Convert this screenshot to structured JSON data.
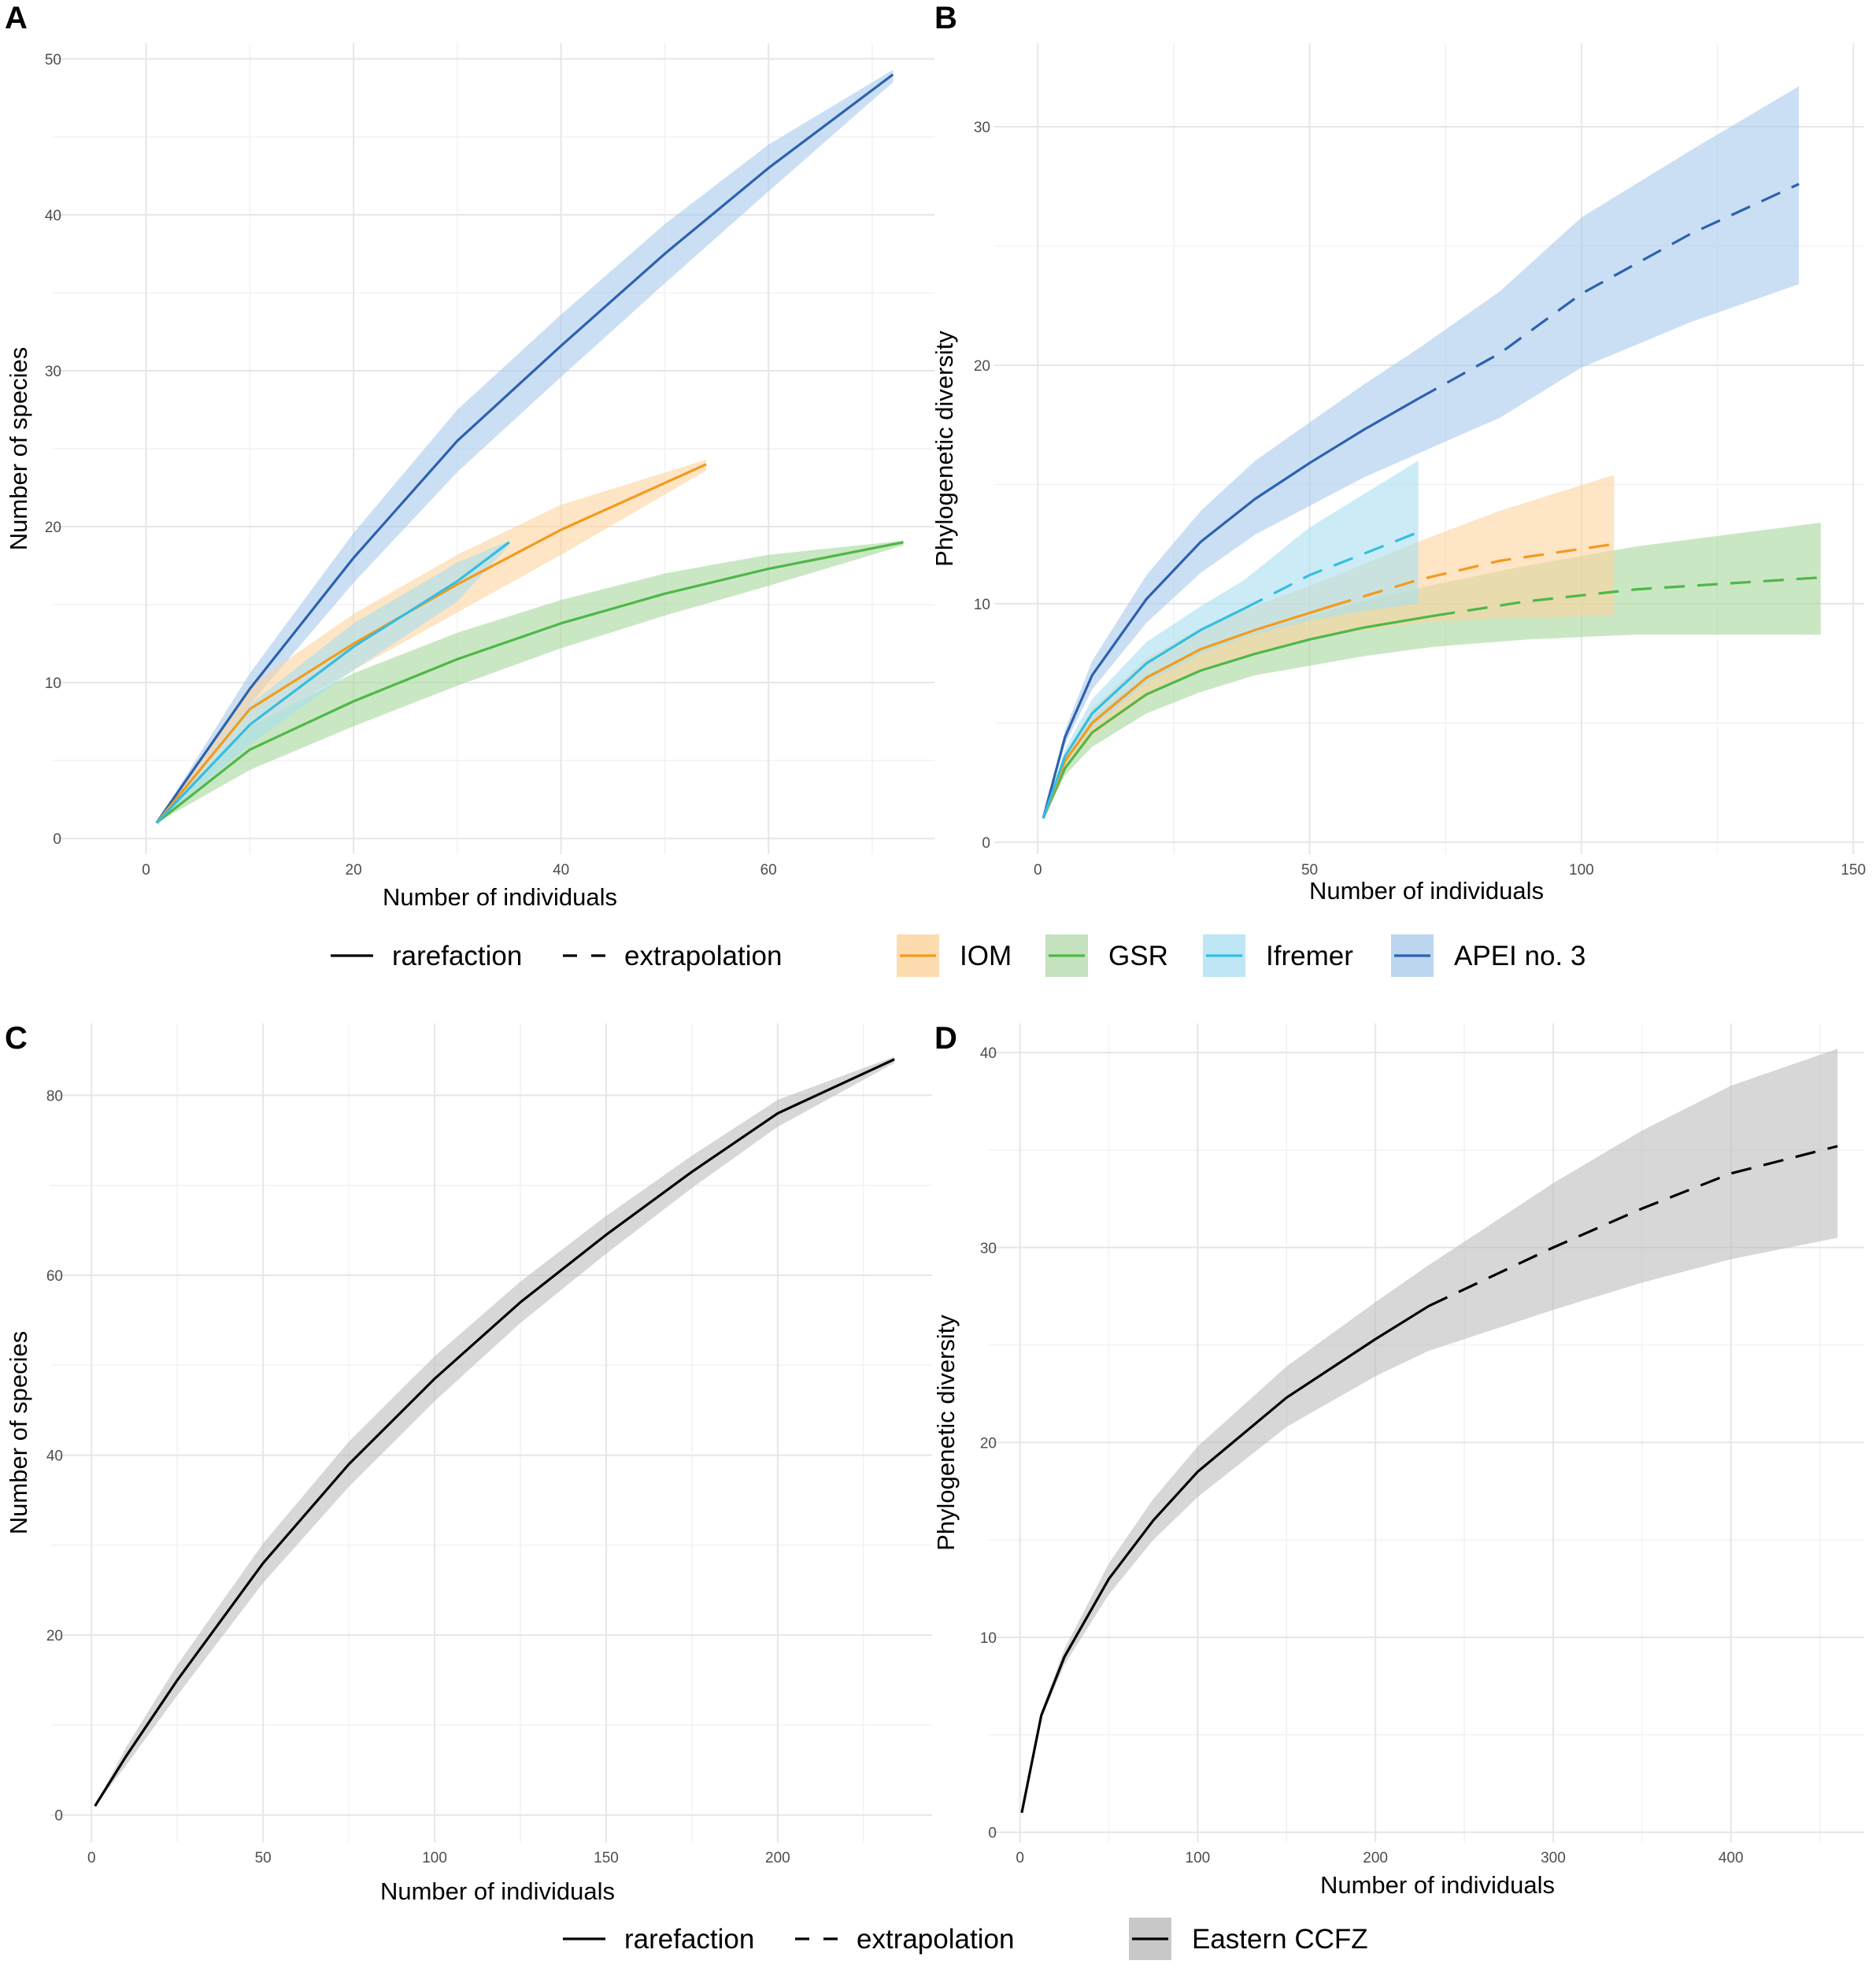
{
  "legend_top": {
    "linetype": [
      {
        "label": "rarefaction",
        "dash": false
      },
      {
        "label": "extrapolation",
        "dash": true
      }
    ],
    "groups": [
      {
        "label": "IOM",
        "color": "#f39a1e",
        "fill": "#fddcb0"
      },
      {
        "label": "GSR",
        "color": "#4db848",
        "fill": "#c4e2bd"
      },
      {
        "label": "Ifremer",
        "color": "#35bde0",
        "fill": "#bfe6f4"
      },
      {
        "label": "APEI no. 3",
        "color": "#2b62ad",
        "fill": "#bcd6f0"
      }
    ]
  },
  "legend_bottom": {
    "linetype": [
      {
        "label": "rarefaction",
        "dash": false
      },
      {
        "label": "extrapolation",
        "dash": true
      }
    ],
    "groups": [
      {
        "label": "Eastern CCFZ",
        "color": "#000000",
        "fill": "#c8c8c8"
      }
    ]
  },
  "chart_data": [
    {
      "panel": "A",
      "type": "line",
      "xlabel": "Number of individuals",
      "ylabel": "Number of species",
      "xlim": [
        -9,
        76
      ],
      "ylim": [
        -1,
        51
      ],
      "xticks": [
        0,
        20,
        40,
        60
      ],
      "xminor": [
        10,
        30,
        50,
        70
      ],
      "yticks": [
        0,
        10,
        20,
        30,
        40,
        50
      ],
      "yminor": [
        5,
        15,
        25,
        35,
        45
      ],
      "series": [
        {
          "name": "APEI no. 3",
          "color": "#2b62ad",
          "fill": "#a9c9ec",
          "rare_end": 72,
          "points": [
            [
              1,
              1,
              1,
              1
            ],
            [
              10,
              9.6,
              8.6,
              10.6
            ],
            [
              20,
              18,
              16.4,
              19.6
            ],
            [
              30,
              25.5,
              23.5,
              27.5
            ],
            [
              40,
              31.6,
              29.6,
              33.6
            ],
            [
              50,
              37.5,
              35.6,
              39.4
            ],
            [
              60,
              43,
              41.5,
              44.5
            ],
            [
              72,
              49,
              48.5,
              49.3
            ]
          ]
        },
        {
          "name": "GSR",
          "color": "#4db848",
          "fill": "#a7d79b",
          "rare_end": 73,
          "points": [
            [
              1,
              1,
              1,
              1
            ],
            [
              10,
              5.7,
              4.4,
              7.2
            ],
            [
              20,
              8.8,
              7.2,
              10.6
            ],
            [
              30,
              11.5,
              9.8,
              13.2
            ],
            [
              40,
              13.8,
              12.2,
              15.3
            ],
            [
              50,
              15.7,
              14.3,
              17
            ],
            [
              60,
              17.3,
              16.2,
              18.2
            ],
            [
              73,
              19,
              18.8,
              19.1
            ]
          ]
        },
        {
          "name": "IOM",
          "color": "#f39a1e",
          "fill": "#fcd39e",
          "rare_end": 54,
          "points": [
            [
              1,
              1,
              1,
              1
            ],
            [
              10,
              8.3,
              7,
              9.8
            ],
            [
              20,
              12.5,
              10.8,
              14.4
            ],
            [
              30,
              16.3,
              14.5,
              18.2
            ],
            [
              40,
              19.8,
              18.2,
              21.4
            ],
            [
              54,
              24,
              23.6,
              24.3
            ]
          ]
        },
        {
          "name": "Ifremer",
          "color": "#35bde0",
          "fill": "#a9dff0",
          "rare_end": 35,
          "points": [
            [
              1,
              1,
              1,
              1
            ],
            [
              10,
              7.3,
              6,
              8.6
            ],
            [
              20,
              12.3,
              10.8,
              13.8
            ],
            [
              30,
              16.5,
              15.2,
              17.7
            ],
            [
              35,
              19,
              18.8,
              19.1
            ]
          ]
        }
      ]
    },
    {
      "panel": "B",
      "type": "line",
      "xlabel": "Number of individuals",
      "ylabel": "Phylogenetic diversity",
      "xlim": [
        -8,
        152
      ],
      "ylim": [
        -0.5,
        33.5
      ],
      "xticks": [
        0,
        50,
        100,
        150
      ],
      "xminor": [
        25,
        75,
        125
      ],
      "yticks": [
        0,
        10,
        20,
        30
      ],
      "yminor": [
        5,
        15,
        25
      ],
      "series": [
        {
          "name": "APEI no. 3",
          "color": "#2b62ad",
          "fill": "#a9c9ec",
          "rare_end": 70,
          "points": [
            [
              1,
              1,
              1,
              1
            ],
            [
              5,
              4.4,
              4.1,
              4.7
            ],
            [
              10,
              7,
              6.4,
              7.6
            ],
            [
              20,
              10.2,
              9.2,
              11.2
            ],
            [
              30,
              12.6,
              11.3,
              13.9
            ],
            [
              40,
              14.4,
              12.9,
              16
            ],
            [
              50,
              15.9,
              14.1,
              17.6
            ],
            [
              60,
              17.3,
              15.3,
              19.2
            ],
            [
              70,
              18.6,
              16.3,
              20.7
            ],
            [
              85,
              20.5,
              17.8,
              23.1
            ],
            [
              100,
              23,
              19.9,
              26.2
            ],
            [
              120,
              25.5,
              21.8,
              29
            ],
            [
              140,
              27.6,
              23.4,
              31.7
            ]
          ]
        },
        {
          "name": "GSR",
          "color": "#4db848",
          "fill": "#a7d79b",
          "rare_end": 73,
          "points": [
            [
              1,
              1,
              1,
              1
            ],
            [
              5,
              3.1,
              2.8,
              3.4
            ],
            [
              10,
              4.6,
              4,
              5.2
            ],
            [
              20,
              6.2,
              5.4,
              7
            ],
            [
              30,
              7.2,
              6.3,
              8.1
            ],
            [
              40,
              7.9,
              7,
              8.8
            ],
            [
              50,
              8.5,
              7.4,
              9.5
            ],
            [
              60,
              9,
              7.8,
              10.1
            ],
            [
              73,
              9.5,
              8.2,
              10.8
            ],
            [
              90,
              10.1,
              8.5,
              11.6
            ],
            [
              110,
              10.6,
              8.7,
              12.4
            ],
            [
              144,
              11.1,
              8.7,
              13.4
            ]
          ]
        },
        {
          "name": "IOM",
          "color": "#f39a1e",
          "fill": "#fcd39e",
          "rare_end": 54,
          "points": [
            [
              1,
              1,
              1,
              1
            ],
            [
              5,
              3.4,
              3.1,
              3.7
            ],
            [
              10,
              5,
              4.4,
              5.6
            ],
            [
              20,
              6.9,
              6.1,
              7.7
            ],
            [
              30,
              8.1,
              7.2,
              9
            ],
            [
              40,
              8.9,
              7.9,
              9.9
            ],
            [
              54,
              9.9,
              8.7,
              11.1
            ],
            [
              70,
              11,
              9.2,
              12.6
            ],
            [
              85,
              11.8,
              9.4,
              13.9
            ],
            [
              106,
              12.5,
              9.5,
              15.4
            ]
          ]
        },
        {
          "name": "Ifremer",
          "color": "#35bde0",
          "fill": "#a9dff0",
          "rare_end": 38,
          "points": [
            [
              1,
              1,
              1,
              1
            ],
            [
              5,
              3.6,
              3.3,
              3.9
            ],
            [
              10,
              5.4,
              4.8,
              6
            ],
            [
              20,
              7.5,
              6.7,
              8.4
            ],
            [
              30,
              8.9,
              7.9,
              9.9
            ],
            [
              38,
              9.8,
              8.6,
              11
            ],
            [
              50,
              11.2,
              9.3,
              13.2
            ],
            [
              60,
              12.1,
              9.7,
              14.6
            ],
            [
              70,
              13,
              10,
              16
            ]
          ]
        }
      ]
    },
    {
      "panel": "C",
      "type": "line",
      "xlabel": "Number of individuals",
      "ylabel": "Number of species",
      "xlim": [
        -12,
        245
      ],
      "ylim": [
        -3,
        88
      ],
      "xticks": [
        0,
        50,
        100,
        150,
        200
      ],
      "xminor": [
        25,
        75,
        125,
        175,
        225
      ],
      "yticks": [
        0,
        20,
        40,
        60,
        80
      ],
      "yminor": [
        10,
        30,
        50,
        70
      ],
      "series": [
        {
          "name": "Eastern CCFZ",
          "color": "#000000",
          "fill": "#bdbdbd",
          "rare_end": 234,
          "points": [
            [
              1,
              1,
              1,
              1
            ],
            [
              10,
              6.5,
              5.5,
              7.5
            ],
            [
              25,
              15,
              13.3,
              16.7
            ],
            [
              50,
              28,
              25.8,
              30.2
            ],
            [
              75,
              39,
              36.5,
              41.5
            ],
            [
              100,
              48.5,
              46,
              51
            ],
            [
              125,
              57,
              54.7,
              59.3
            ],
            [
              150,
              64.5,
              62.4,
              66.6
            ],
            [
              175,
              71.5,
              69.7,
              73.3
            ],
            [
              200,
              78,
              76.5,
              79.5
            ],
            [
              234,
              84,
              83.6,
              84.3
            ]
          ]
        }
      ]
    },
    {
      "panel": "D",
      "type": "line",
      "xlabel": "Number of individuals",
      "ylabel": "Phylogenetic diversity",
      "xlim": [
        -18,
        475
      ],
      "ylim": [
        -0.5,
        41.5
      ],
      "xticks": [
        0,
        100,
        200,
        300,
        400
      ],
      "xminor": [
        50,
        150,
        250,
        350,
        450
      ],
      "yticks": [
        0,
        10,
        20,
        30,
        40
      ],
      "yminor": [
        5,
        15,
        25,
        35
      ],
      "series": [
        {
          "name": "Eastern CCFZ",
          "color": "#000000",
          "fill": "#bdbdbd",
          "rare_end": 230,
          "points": [
            [
              1,
              1,
              1,
              1
            ],
            [
              12,
              6,
              5.8,
              6.2
            ],
            [
              25,
              9,
              8.6,
              9.4
            ],
            [
              50,
              13,
              12.2,
              13.8
            ],
            [
              75,
              16,
              15,
              17.1
            ],
            [
              100,
              18.5,
              17.2,
              19.8
            ],
            [
              150,
              22.3,
              20.8,
              23.9
            ],
            [
              200,
              25.3,
              23.4,
              27.2
            ],
            [
              230,
              27,
              24.7,
              29.1
            ],
            [
              300,
              30,
              26.8,
              33.3
            ],
            [
              350,
              32,
              28.2,
              36
            ],
            [
              400,
              33.8,
              29.4,
              38.3
            ],
            [
              460,
              35.2,
              30.5,
              40.2
            ]
          ]
        }
      ]
    }
  ]
}
